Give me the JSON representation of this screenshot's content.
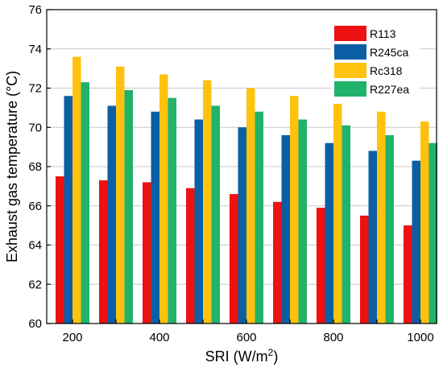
{
  "chart_data": {
    "type": "bar",
    "title": "",
    "xlabel": "SRI (W/m",
    "xlabel_sup": "2",
    "xlabel_suffix": ")",
    "ylabel": "Exhaust gas temperature (°C)",
    "categories": [
      "200",
      "300",
      "400",
      "500",
      "600",
      "700",
      "800",
      "900",
      "1000"
    ],
    "x_tick_labels": [
      "200",
      "400",
      "600",
      "800",
      "1000"
    ],
    "ylim": [
      60,
      76
    ],
    "y_ticks": [
      60,
      62,
      64,
      66,
      68,
      70,
      72,
      74,
      76
    ],
    "grid": "horizontal",
    "legend_position": "top-right",
    "series": [
      {
        "name": "R113",
        "color": "#ee1111",
        "values": [
          67.5,
          67.3,
          67.2,
          66.9,
          66.6,
          66.2,
          65.9,
          65.5,
          65.0
        ]
      },
      {
        "name": "R245ca",
        "color": "#0b5fa5",
        "values": [
          71.6,
          71.1,
          70.8,
          70.4,
          70.0,
          69.6,
          69.2,
          68.8,
          68.3
        ]
      },
      {
        "name": "Rc318",
        "color": "#ffc20e",
        "values": [
          73.6,
          73.1,
          72.7,
          72.4,
          72.0,
          71.6,
          71.2,
          70.8,
          70.3
        ]
      },
      {
        "name": "R227ea",
        "color": "#21b36b",
        "values": [
          72.3,
          71.9,
          71.5,
          71.1,
          70.8,
          70.4,
          70.1,
          69.6,
          69.2
        ]
      }
    ]
  }
}
